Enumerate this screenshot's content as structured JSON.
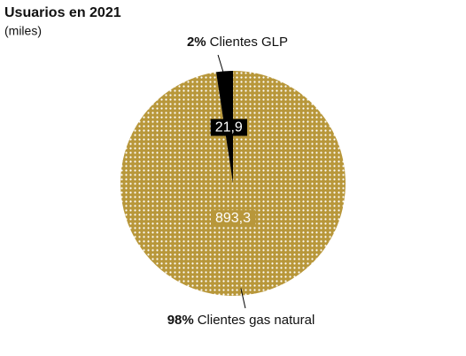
{
  "chart_data": {
    "type": "pie",
    "title": "Usuarios en 2021",
    "subtitle": "(miles)",
    "categories": [
      "Clientes gas natural",
      "Clientes GLP"
    ],
    "values": [
      893.3,
      21.9
    ],
    "value_labels": [
      "893,3",
      "21,9"
    ],
    "percent_labels": [
      "98%",
      "2%"
    ],
    "colors": [
      "#b8973a",
      "#000000"
    ]
  }
}
